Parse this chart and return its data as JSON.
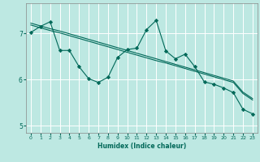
{
  "xlabel": "Humidex (Indice chaleur)",
  "background_color": "#bde8e2",
  "grid_color": "#ffffff",
  "line_color": "#006858",
  "xlim": [
    -0.5,
    23.5
  ],
  "ylim": [
    4.85,
    7.65
  ],
  "yticks": [
    5,
    6,
    7
  ],
  "xticks": [
    0,
    1,
    2,
    3,
    4,
    5,
    6,
    7,
    8,
    9,
    10,
    11,
    12,
    13,
    14,
    15,
    16,
    17,
    18,
    19,
    20,
    21,
    22,
    23
  ],
  "series1_x": [
    0,
    1,
    2,
    3,
    4,
    5,
    6,
    7,
    8,
    9,
    10,
    11,
    12,
    13,
    14,
    15,
    16,
    17,
    18,
    19,
    20,
    21,
    22,
    23
  ],
  "series1_y": [
    7.02,
    7.15,
    7.25,
    6.63,
    6.63,
    6.28,
    6.02,
    5.94,
    6.05,
    6.48,
    6.65,
    6.68,
    7.08,
    7.28,
    6.62,
    6.45,
    6.55,
    6.28,
    5.95,
    5.9,
    5.82,
    5.72,
    5.36,
    5.26
  ],
  "series2_x": [
    0,
    1,
    2,
    3,
    4,
    5,
    6,
    7,
    8,
    9,
    10,
    11,
    12,
    13,
    14,
    15,
    16,
    17,
    18,
    19,
    20,
    21,
    22,
    23
  ],
  "series2_y": [
    7.18,
    7.12,
    7.06,
    7.01,
    6.95,
    6.89,
    6.83,
    6.77,
    6.71,
    6.65,
    6.59,
    6.53,
    6.47,
    6.41,
    6.36,
    6.3,
    6.24,
    6.18,
    6.12,
    6.06,
    6.0,
    5.94,
    5.7,
    5.56
  ],
  "series3_x": [
    0,
    1,
    2,
    3,
    4,
    5,
    6,
    7,
    8,
    9,
    10,
    11,
    12,
    13,
    14,
    15,
    16,
    17,
    18,
    19,
    20,
    21,
    22,
    23
  ],
  "series3_y": [
    7.22,
    7.16,
    7.1,
    7.05,
    6.99,
    6.93,
    6.87,
    6.81,
    6.75,
    6.69,
    6.63,
    6.57,
    6.51,
    6.45,
    6.39,
    6.33,
    6.27,
    6.21,
    6.15,
    6.09,
    6.03,
    5.97,
    5.73,
    5.59
  ]
}
